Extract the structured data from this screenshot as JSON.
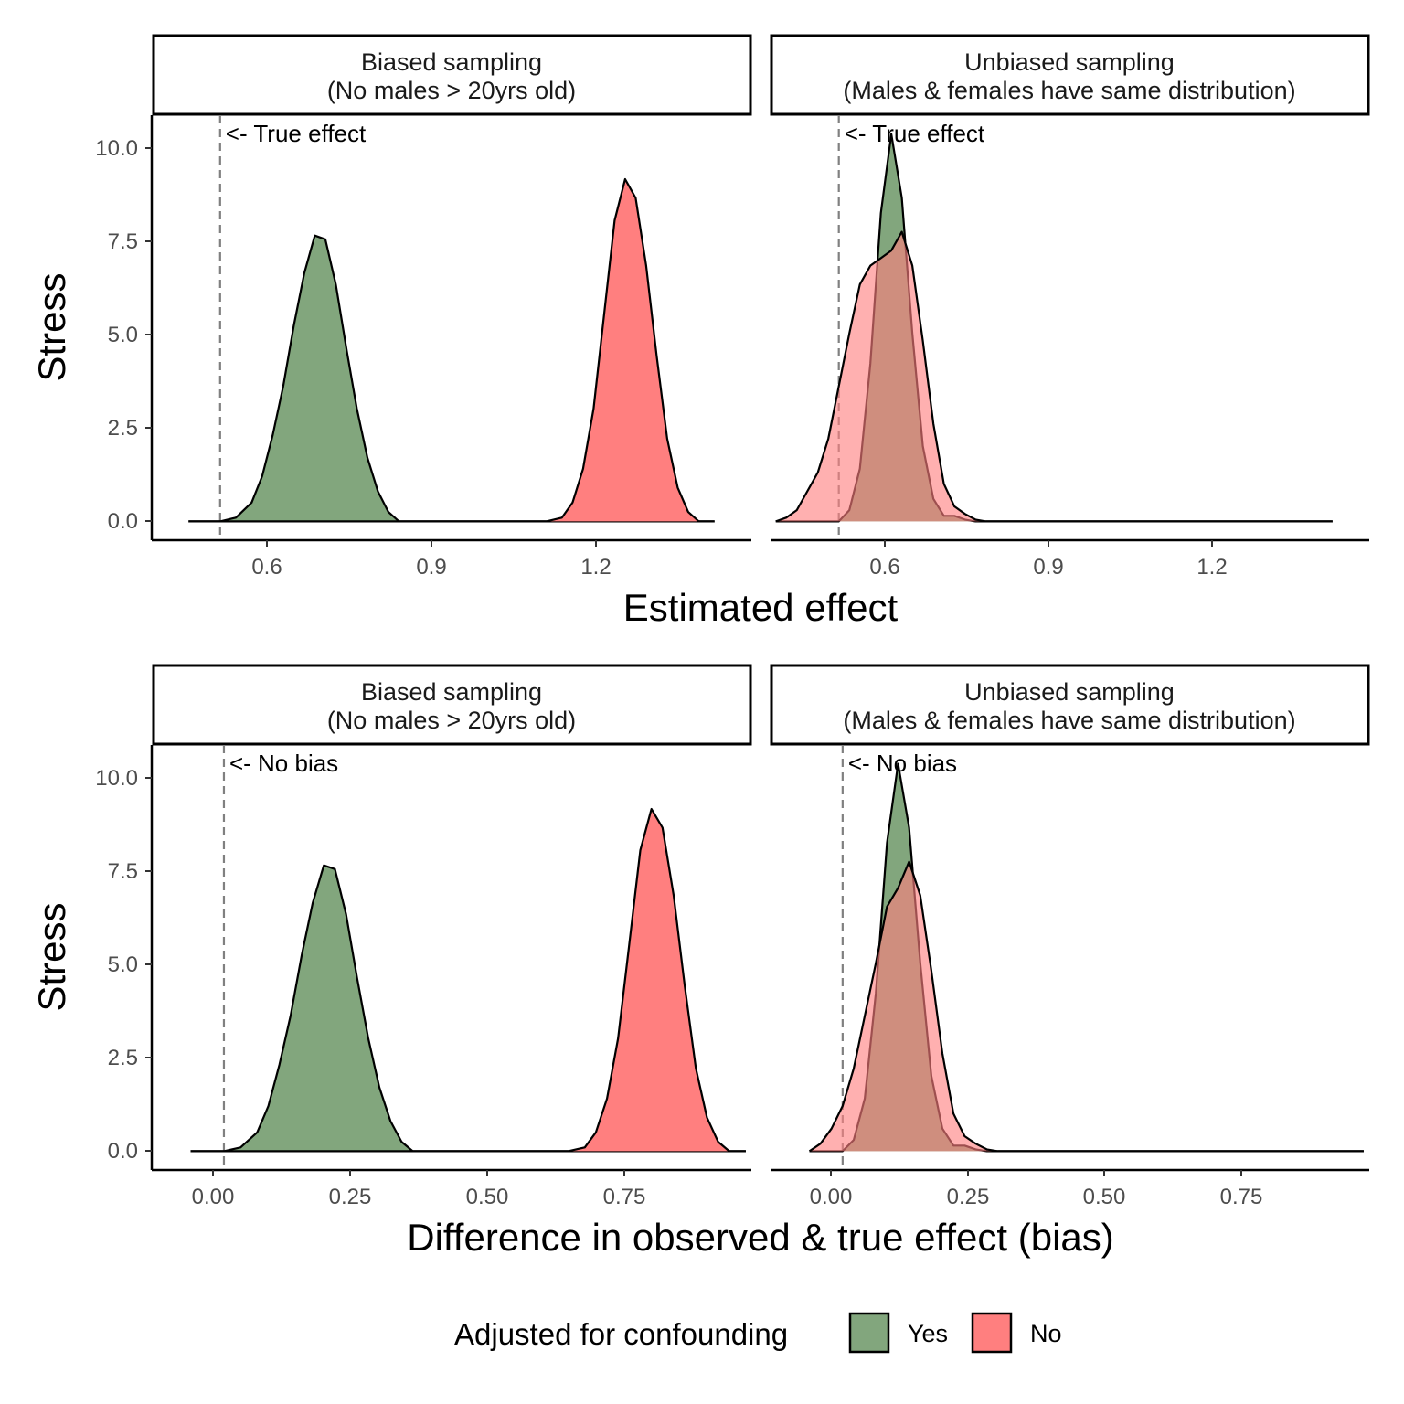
{
  "legend": {
    "title": "Adjusted for confounding",
    "items": [
      {
        "label": "Yes",
        "color": "#82a67d"
      },
      {
        "label": "No",
        "color": "#ff7f7f"
      }
    ]
  },
  "colors": {
    "yes": "#82a67d",
    "no": "#ff7f7f",
    "overlap": "#c0504d",
    "ref_line": "#808080"
  },
  "chart_data": [
    {
      "type": "area",
      "title": "",
      "xlabel": "Estimated effect",
      "ylabel": "Stress",
      "xlim": [
        0.37,
        1.51
      ],
      "ylim": [
        -0.5,
        10.8
      ],
      "xticks": [
        0.6,
        0.9,
        1.2
      ],
      "xtick_labels": [
        "0.6",
        "0.9",
        "1.2"
      ],
      "yticks": [
        0.0,
        2.5,
        5.0,
        7.5,
        10.0
      ],
      "ytick_labels": [
        "0.0",
        "2.5",
        "5.0",
        "7.5",
        "10.0"
      ],
      "reference_line": {
        "x": 0.5,
        "label": "<- True effect"
      },
      "panels": [
        {
          "strip": [
            "Biased sampling",
            "(No males > 20yrs old)"
          ],
          "x_domain": [
            0.44,
            1.44
          ],
          "series": [
            {
              "name": "Yes",
              "points": [
                [
                  0.44,
                  0
                ],
                [
                  0.5,
                  0
                ],
                [
                  0.53,
                  0.1
                ],
                [
                  0.56,
                  0.5
                ],
                [
                  0.58,
                  1.2
                ],
                [
                  0.6,
                  2.3
                ],
                [
                  0.62,
                  3.6
                ],
                [
                  0.64,
                  5.2
                ],
                [
                  0.66,
                  6.6
                ],
                [
                  0.68,
                  7.6
                ],
                [
                  0.7,
                  7.5
                ],
                [
                  0.72,
                  6.3
                ],
                [
                  0.74,
                  4.6
                ],
                [
                  0.76,
                  3.0
                ],
                [
                  0.78,
                  1.7
                ],
                [
                  0.8,
                  0.8
                ],
                [
                  0.82,
                  0.25
                ],
                [
                  0.84,
                  0
                ],
                [
                  1.44,
                  0
                ]
              ]
            },
            {
              "name": "No",
              "points": [
                [
                  0.44,
                  0
                ],
                [
                  1.12,
                  0
                ],
                [
                  1.15,
                  0.1
                ],
                [
                  1.17,
                  0.5
                ],
                [
                  1.19,
                  1.4
                ],
                [
                  1.21,
                  3.0
                ],
                [
                  1.23,
                  5.5
                ],
                [
                  1.25,
                  8.0
                ],
                [
                  1.27,
                  9.1
                ],
                [
                  1.29,
                  8.6
                ],
                [
                  1.31,
                  6.8
                ],
                [
                  1.33,
                  4.4
                ],
                [
                  1.35,
                  2.2
                ],
                [
                  1.37,
                  0.9
                ],
                [
                  1.39,
                  0.25
                ],
                [
                  1.41,
                  0
                ],
                [
                  1.44,
                  0
                ]
              ]
            }
          ]
        },
        {
          "strip": [
            "Unbiased sampling",
            "(Males & females have same distribution)"
          ],
          "x_domain": [
            0.38,
            1.44
          ],
          "series": [
            {
              "name": "Yes",
              "points": [
                [
                  0.38,
                  0
                ],
                [
                  0.5,
                  0
                ],
                [
                  0.52,
                  0.3
                ],
                [
                  0.54,
                  1.4
                ],
                [
                  0.56,
                  4.2
                ],
                [
                  0.58,
                  8.2
                ],
                [
                  0.6,
                  10.3
                ],
                [
                  0.62,
                  8.6
                ],
                [
                  0.64,
                  5.0
                ],
                [
                  0.66,
                  2.0
                ],
                [
                  0.68,
                  0.6
                ],
                [
                  0.7,
                  0.15
                ],
                [
                  0.72,
                  0.15
                ],
                [
                  0.74,
                  0.05
                ],
                [
                  0.76,
                  0
                ],
                [
                  1.44,
                  0
                ]
              ]
            },
            {
              "name": "No",
              "points": [
                [
                  0.38,
                  0
                ],
                [
                  0.4,
                  0.1
                ],
                [
                  0.42,
                  0.3
                ],
                [
                  0.44,
                  0.8
                ],
                [
                  0.46,
                  1.3
                ],
                [
                  0.48,
                  2.2
                ],
                [
                  0.5,
                  3.6
                ],
                [
                  0.52,
                  5.0
                ],
                [
                  0.54,
                  6.3
                ],
                [
                  0.56,
                  6.8
                ],
                [
                  0.58,
                  7.0
                ],
                [
                  0.6,
                  7.2
                ],
                [
                  0.62,
                  7.7
                ],
                [
                  0.64,
                  6.8
                ],
                [
                  0.66,
                  4.8
                ],
                [
                  0.68,
                  2.6
                ],
                [
                  0.7,
                  1.0
                ],
                [
                  0.72,
                  0.4
                ],
                [
                  0.74,
                  0.2
                ],
                [
                  0.76,
                  0.05
                ],
                [
                  0.78,
                  0
                ],
                [
                  1.44,
                  0
                ]
              ]
            }
          ]
        }
      ]
    },
    {
      "type": "area",
      "title": "",
      "xlabel": "Difference in observed & true effect (bias)",
      "ylabel": "Stress",
      "xlim": [
        -0.13,
        0.95
      ],
      "ylim": [
        -0.5,
        10.8
      ],
      "xticks": [
        0.0,
        0.25,
        0.5,
        0.75
      ],
      "xtick_labels": [
        "0.00",
        "0.25",
        "0.50",
        "0.75"
      ],
      "yticks": [
        0.0,
        2.5,
        5.0,
        7.5,
        10.0
      ],
      "ytick_labels": [
        "0.0",
        "2.5",
        "5.0",
        "7.5",
        "10.0"
      ],
      "reference_line": {
        "x": 0.0,
        "label": "<- No bias"
      },
      "panels": [
        {
          "strip": [
            "Biased sampling",
            "(No males > 20yrs old)"
          ],
          "x_domain": [
            -0.06,
            0.94
          ],
          "series": [
            {
              "name": "Yes",
              "points": [
                [
                  -0.06,
                  0
                ],
                [
                  0.0,
                  0
                ],
                [
                  0.03,
                  0.1
                ],
                [
                  0.06,
                  0.5
                ],
                [
                  0.08,
                  1.2
                ],
                [
                  0.1,
                  2.3
                ],
                [
                  0.12,
                  3.6
                ],
                [
                  0.14,
                  5.2
                ],
                [
                  0.16,
                  6.6
                ],
                [
                  0.18,
                  7.6
                ],
                [
                  0.2,
                  7.5
                ],
                [
                  0.22,
                  6.3
                ],
                [
                  0.24,
                  4.6
                ],
                [
                  0.26,
                  3.0
                ],
                [
                  0.28,
                  1.7
                ],
                [
                  0.3,
                  0.8
                ],
                [
                  0.32,
                  0.25
                ],
                [
                  0.34,
                  0
                ],
                [
                  0.94,
                  0
                ]
              ]
            },
            {
              "name": "No",
              "points": [
                [
                  -0.06,
                  0
                ],
                [
                  0.62,
                  0
                ],
                [
                  0.65,
                  0.1
                ],
                [
                  0.67,
                  0.5
                ],
                [
                  0.69,
                  1.4
                ],
                [
                  0.71,
                  3.0
                ],
                [
                  0.73,
                  5.5
                ],
                [
                  0.75,
                  8.0
                ],
                [
                  0.77,
                  9.1
                ],
                [
                  0.79,
                  8.6
                ],
                [
                  0.81,
                  6.8
                ],
                [
                  0.83,
                  4.4
                ],
                [
                  0.85,
                  2.2
                ],
                [
                  0.87,
                  0.9
                ],
                [
                  0.89,
                  0.25
                ],
                [
                  0.91,
                  0
                ],
                [
                  0.94,
                  0
                ]
              ]
            }
          ]
        },
        {
          "strip": [
            "Unbiased sampling",
            "(Males & females have same distribution)"
          ],
          "x_domain": [
            -0.06,
            0.94
          ],
          "series": [
            {
              "name": "Yes",
              "points": [
                [
                  -0.06,
                  0
                ],
                [
                  0.0,
                  0
                ],
                [
                  0.02,
                  0.3
                ],
                [
                  0.04,
                  1.4
                ],
                [
                  0.06,
                  4.2
                ],
                [
                  0.08,
                  8.2
                ],
                [
                  0.1,
                  10.3
                ],
                [
                  0.12,
                  8.6
                ],
                [
                  0.14,
                  5.0
                ],
                [
                  0.16,
                  2.0
                ],
                [
                  0.18,
                  0.6
                ],
                [
                  0.2,
                  0.15
                ],
                [
                  0.22,
                  0.15
                ],
                [
                  0.24,
                  0.05
                ],
                [
                  0.26,
                  0
                ],
                [
                  0.94,
                  0
                ]
              ]
            },
            {
              "name": "No",
              "points": [
                [
                  -0.06,
                  0
                ],
                [
                  -0.04,
                  0.2
                ],
                [
                  -0.02,
                  0.6
                ],
                [
                  0.0,
                  1.2
                ],
                [
                  0.02,
                  2.2
                ],
                [
                  0.04,
                  3.6
                ],
                [
                  0.06,
                  5.0
                ],
                [
                  0.08,
                  6.5
                ],
                [
                  0.1,
                  7.0
                ],
                [
                  0.12,
                  7.7
                ],
                [
                  0.14,
                  6.8
                ],
                [
                  0.16,
                  4.8
                ],
                [
                  0.18,
                  2.6
                ],
                [
                  0.2,
                  1.0
                ],
                [
                  0.22,
                  0.4
                ],
                [
                  0.24,
                  0.2
                ],
                [
                  0.26,
                  0.05
                ],
                [
                  0.28,
                  0
                ],
                [
                  0.94,
                  0
                ]
              ]
            }
          ]
        }
      ]
    }
  ]
}
